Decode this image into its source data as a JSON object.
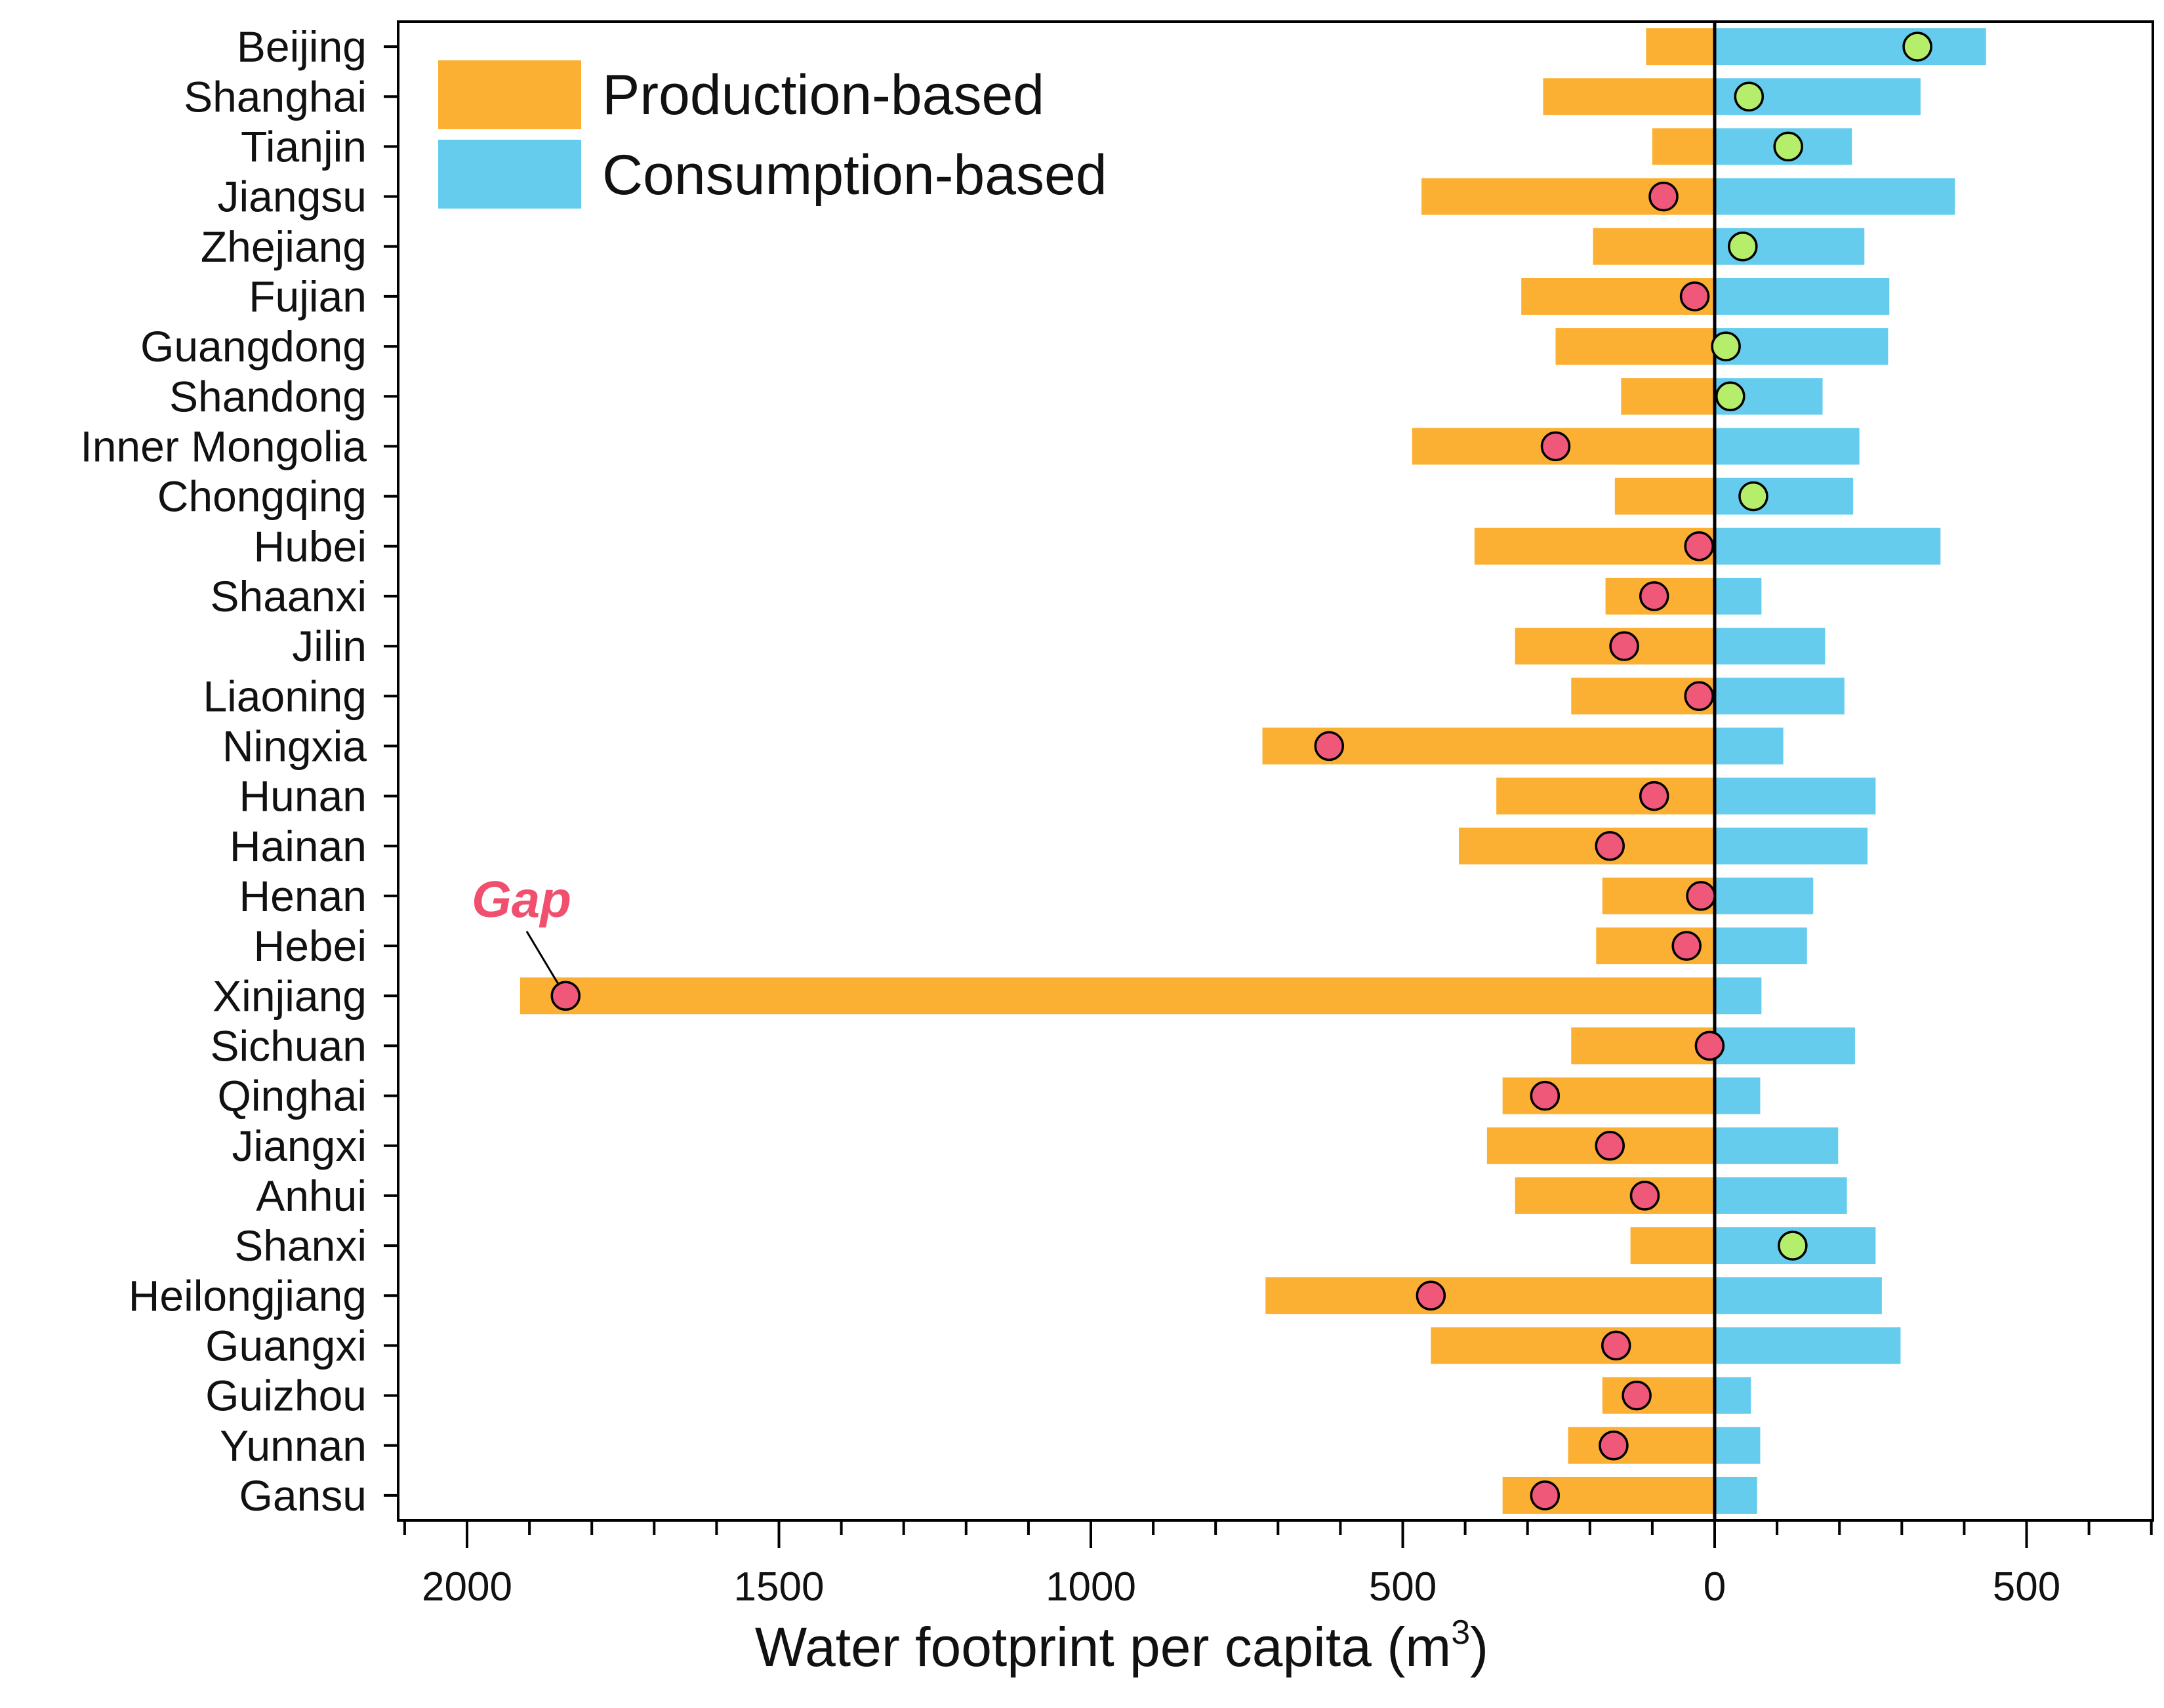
{
  "chart_data": {
    "type": "bar",
    "orientation": "horizontal-diverging",
    "xlabel": "Water footprint per capita (m",
    "xlabel_superscript": "3",
    "xlabel_suffix": ")",
    "xlim": [
      -2100,
      700
    ],
    "xticks": [
      {
        "value": -2000,
        "label": "2000"
      },
      {
        "value": -1500,
        "label": "1500"
      },
      {
        "value": -1000,
        "label": "1000"
      },
      {
        "value": -500,
        "label": "500"
      },
      {
        "value": 0,
        "label": "0"
      },
      {
        "value": 500,
        "label": "500"
      }
    ],
    "legend": {
      "position": "top-left",
      "entries": [
        {
          "label": "Production-based",
          "color": "#fbb034"
        },
        {
          "label": "Consumption-based",
          "color": "#66ccee"
        }
      ]
    },
    "annotation": {
      "text": "Gap",
      "color": "#f0506e",
      "target_category": "Xinjiang"
    },
    "categories": [
      "Beijing",
      "Shanghai",
      "Tianjin",
      "Jiangsu",
      "Zhejiang",
      "Fujian",
      "Guangdong",
      "Shandong",
      "Inner Mongolia",
      "Chongqing",
      "Hubei",
      "Shaanxi",
      "Jilin",
      "Liaoning",
      "Ningxia",
      "Hunan",
      "Hainan",
      "Henan",
      "Hebei",
      "Xinjiang",
      "Sichuan",
      "Qinghai",
      "Jiangxi",
      "Anhui",
      "Shanxi",
      "Heilongjiang",
      "Guangxi",
      "Guizhou",
      "Yunnan",
      "Gansu"
    ],
    "series": [
      {
        "name": "Production-based",
        "color": "#fbb034",
        "values": [
          -110,
          -275,
          -100,
          -470,
          -195,
          -310,
          -255,
          -150,
          -485,
          -160,
          -385,
          -175,
          -320,
          -230,
          -725,
          -350,
          -410,
          -180,
          -190,
          -1915,
          -230,
          -340,
          -365,
          -320,
          -135,
          -720,
          -455,
          -180,
          -235,
          -340
        ]
      },
      {
        "name": "Consumption-based",
        "color": "#66ccee",
        "values": [
          435,
          330,
          220,
          385,
          240,
          280,
          278,
          173,
          232,
          222,
          362,
          75,
          177,
          208,
          110,
          258,
          245,
          158,
          148,
          75,
          225,
          73,
          198,
          212,
          258,
          268,
          298,
          58,
          73,
          68
        ]
      },
      {
        "name": "Gap",
        "marker": "circle",
        "values": [
          325,
          55,
          118,
          -82,
          45,
          -32,
          18,
          25,
          -255,
          62,
          -25,
          -97,
          -145,
          -25,
          -618,
          -97,
          -168,
          -22,
          -45,
          -1842,
          -8,
          -272,
          -168,
          -112,
          125,
          -455,
          -158,
          -125,
          -162,
          -272
        ]
      }
    ],
    "gap_colors": {
      "positive": "#b4ee6a",
      "negative": "#f0587a"
    }
  }
}
